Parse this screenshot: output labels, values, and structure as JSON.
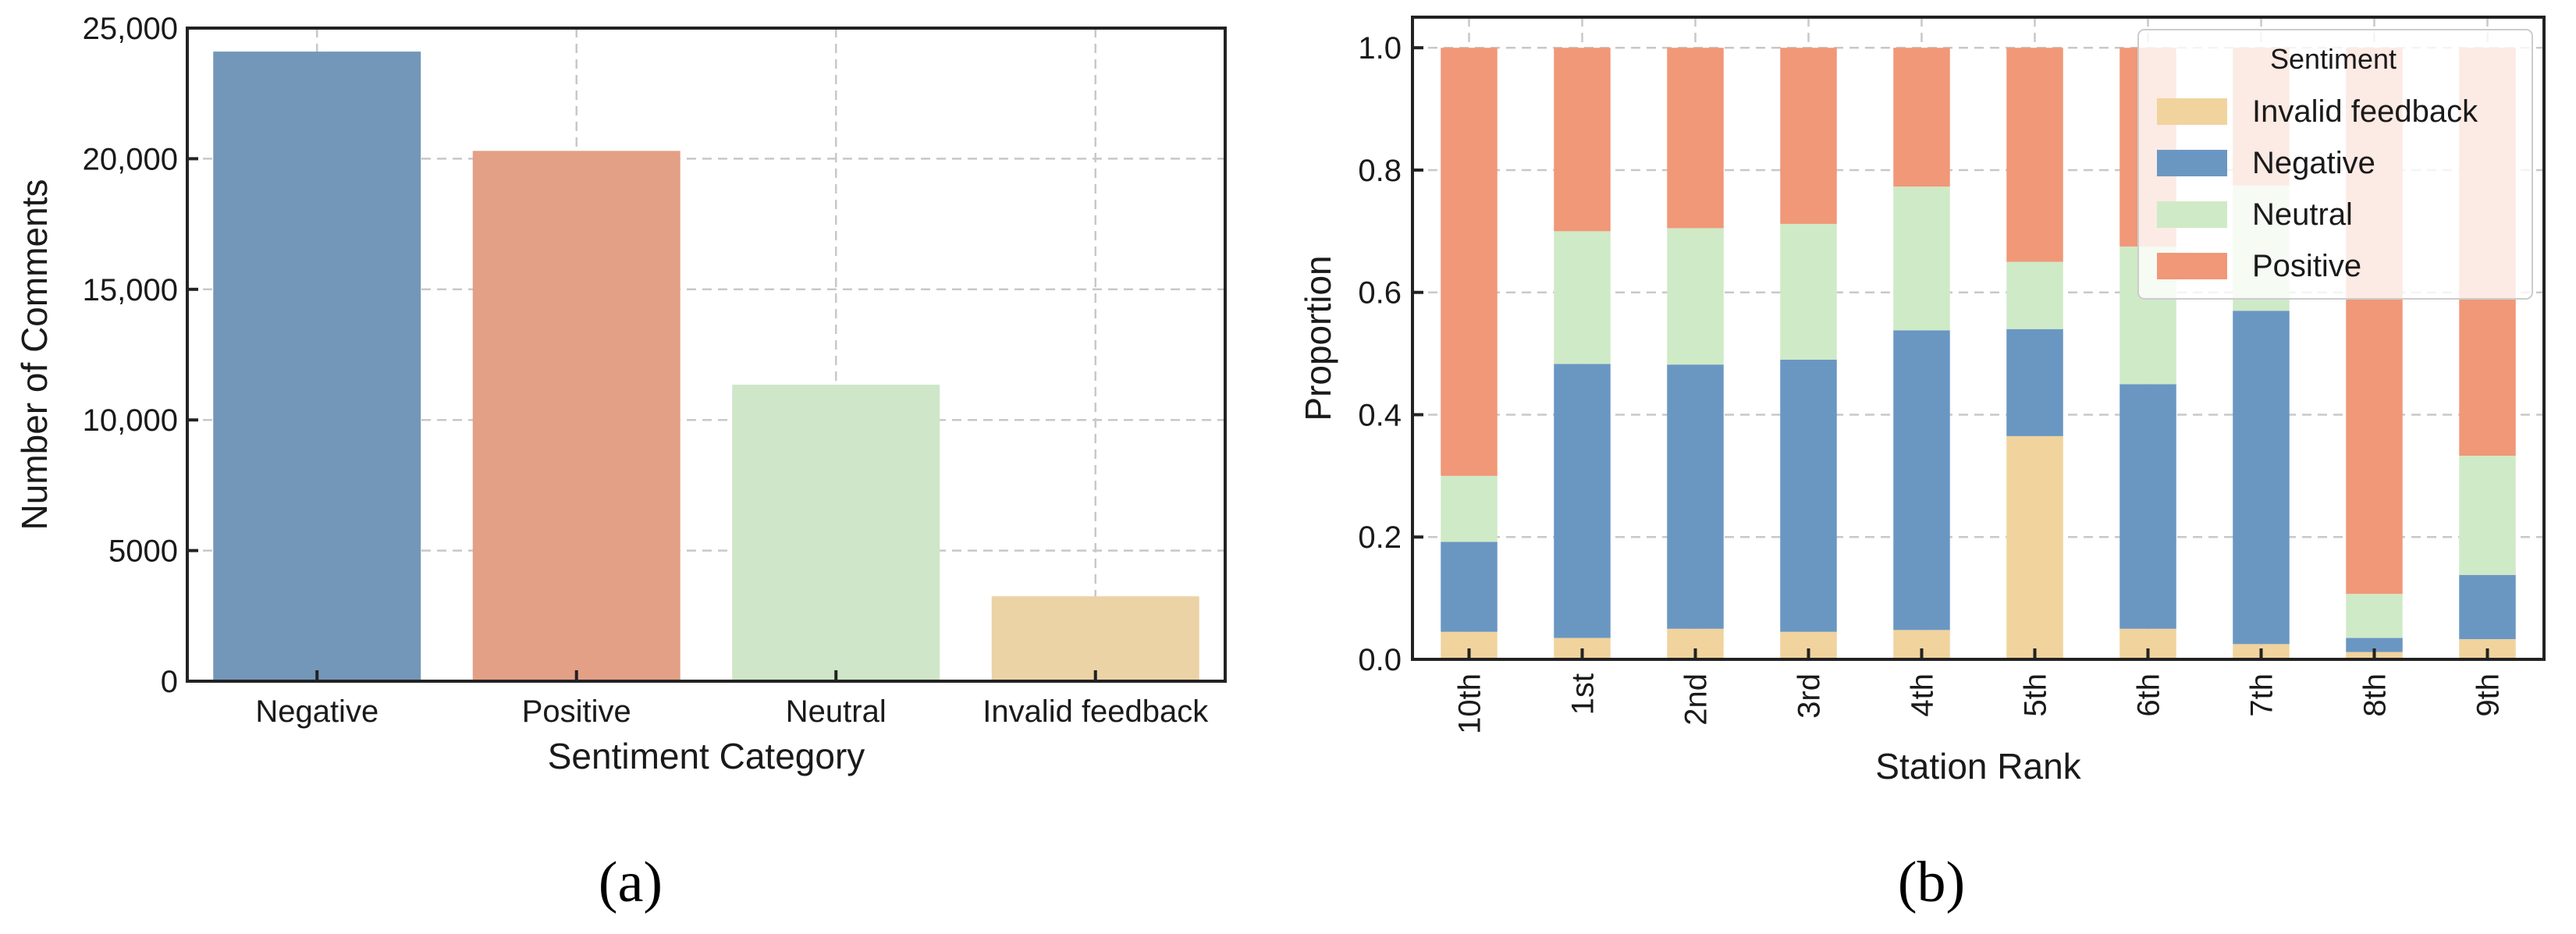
{
  "chart_data": [
    {
      "id": "a",
      "type": "bar",
      "caption": "(a)",
      "xlabel": "Sentiment Category",
      "ylabel": "Number of Comments",
      "categories": [
        "Negative",
        "Positive",
        "Neutral",
        "Invalid feedback"
      ],
      "values": [
        24100,
        20300,
        11350,
        3250
      ],
      "colors": [
        "#7397b8",
        "#e3a086",
        "#cfe6c8",
        "#ebd3a6"
      ],
      "ylim": [
        0,
        25000
      ],
      "yticks": [
        0,
        5000,
        10000,
        15000,
        20000,
        25000
      ],
      "ytick_labels": [
        "0",
        "5000",
        "10,000",
        "15,000",
        "20,000",
        "25,000"
      ],
      "grid": true
    },
    {
      "id": "b",
      "type": "bar",
      "stacked": true,
      "caption": "(b)",
      "xlabel": "Station Rank",
      "ylabel": "Proportion",
      "categories": [
        "10th",
        "1st",
        "2nd",
        "3rd",
        "4th",
        "5th",
        "6th",
        "7th",
        "8th",
        "9th"
      ],
      "series": [
        {
          "name": "Invalid feedback",
          "color": "#f1d39d",
          "values": [
            0.045,
            0.035,
            0.05,
            0.045,
            0.048,
            0.365,
            0.05,
            0.025,
            0.012,
            0.033
          ]
        },
        {
          "name": "Negative",
          "color": "#6a97c2",
          "values": [
            0.147,
            0.448,
            0.432,
            0.445,
            0.49,
            0.175,
            0.4,
            0.545,
            0.023,
            0.105
          ]
        },
        {
          "name": "Neutral",
          "color": "#cfeac6",
          "values": [
            0.108,
            0.217,
            0.223,
            0.222,
            0.235,
            0.11,
            0.225,
            0.205,
            0.072,
            0.195
          ]
        },
        {
          "name": "Positive",
          "color": "#f09878",
          "values": [
            0.7,
            0.3,
            0.295,
            0.288,
            0.227,
            0.35,
            0.325,
            0.225,
            0.893,
            0.667
          ]
        }
      ],
      "ylim": [
        0,
        1.05
      ],
      "yticks": [
        0,
        0.2,
        0.4,
        0.6,
        0.8,
        1.0
      ],
      "ytick_labels": [
        "0.0",
        "0.2",
        "0.4",
        "0.6",
        "0.8",
        "1.0"
      ],
      "legend": {
        "title": "Sentiment",
        "position": "top-right"
      },
      "grid": true
    }
  ]
}
